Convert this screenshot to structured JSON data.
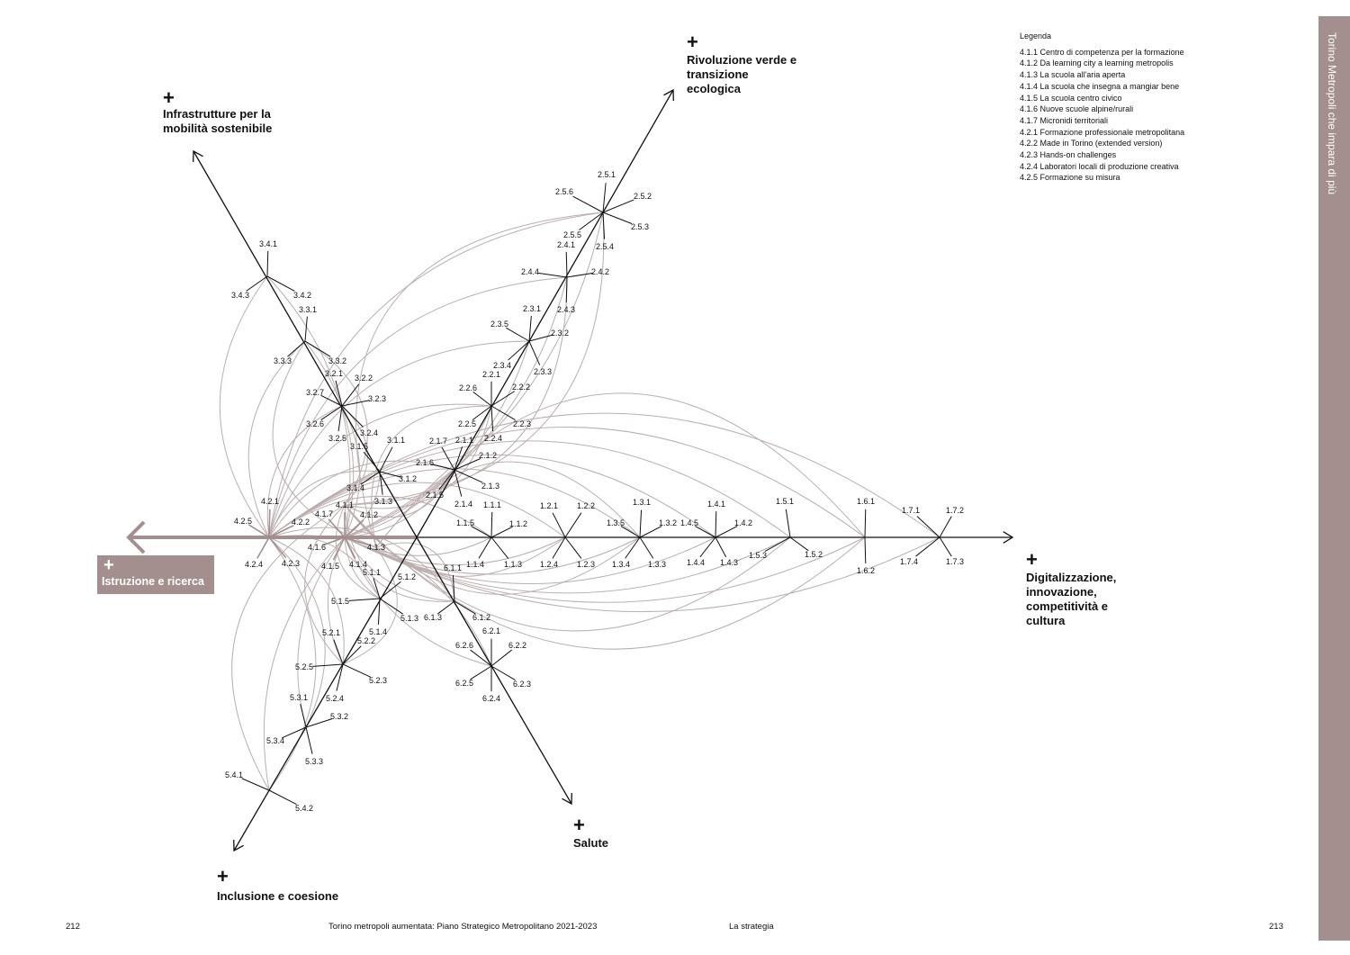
{
  "axes": [
    {
      "id": "1",
      "title": "Digitalizzazione, innovazione, competitività e cultura",
      "plus": "+"
    },
    {
      "id": "2",
      "title": "Rivoluzione verde e transizione ecologica",
      "plus": "+"
    },
    {
      "id": "3",
      "title": "Infrastrutture per la mobilità sostenibile",
      "plus": "+"
    },
    {
      "id": "4",
      "title": "Istruzione e ricerca",
      "plus": "+"
    },
    {
      "id": "5",
      "title": "Inclusione e coesione",
      "plus": "+"
    },
    {
      "id": "6",
      "title": "Salute",
      "plus": "+"
    }
  ],
  "hubs": [
    {
      "id": "1.1",
      "spokes": [
        "1.1.1",
        "1.1.2",
        "1.1.3",
        "1.1.4",
        "1.1.5"
      ]
    },
    {
      "id": "1.2",
      "spokes": [
        "1.2.1",
        "1.2.2",
        "1.2.3",
        "1.2.4"
      ]
    },
    {
      "id": "1.3",
      "spokes": [
        "1.3.1",
        "1.3.2",
        "1.3.3",
        "1.3.4",
        "1.3.5"
      ]
    },
    {
      "id": "1.4",
      "spokes": [
        "1.4.1",
        "1.4.2",
        "1.4.3",
        "1.4.4",
        "1.4.5"
      ]
    },
    {
      "id": "1.5",
      "spokes": [
        "1.5.1",
        "1.5.2",
        "1.5.3"
      ]
    },
    {
      "id": "1.6",
      "spokes": [
        "1.6.1",
        "1.6.2"
      ]
    },
    {
      "id": "1.7",
      "spokes": [
        "1.7.1",
        "1.7.2",
        "1.7.3",
        "1.7.4"
      ]
    },
    {
      "id": "2.1",
      "spokes": [
        "2.1.1",
        "2.1.2",
        "2.1.3",
        "2.1.4",
        "2.1.5",
        "2.1.6",
        "2.1.7"
      ]
    },
    {
      "id": "2.2",
      "spokes": [
        "2.2.1",
        "2.2.2",
        "2.2.3",
        "2.2.4",
        "2.2.5",
        "2.2.6"
      ]
    },
    {
      "id": "2.3",
      "spokes": [
        "2.3.1",
        "2.3.2",
        "2.3.3",
        "2.3.4",
        "2.3.5"
      ]
    },
    {
      "id": "2.4",
      "spokes": [
        "2.4.1",
        "2.4.2",
        "2.4.3",
        "2.4.4"
      ]
    },
    {
      "id": "2.5",
      "spokes": [
        "2.5.1",
        "2.5.2",
        "2.5.3",
        "2.5.4",
        "2.5.5",
        "2.5.6"
      ]
    },
    {
      "id": "3.1",
      "spokes": [
        "3.1.1",
        "3.1.2",
        "3.1.3",
        "3.1.4",
        "3.1.5"
      ]
    },
    {
      "id": "3.2",
      "spokes": [
        "3.2.1",
        "3.2.2",
        "3.2.3",
        "3.2.4",
        "3.2.5",
        "3.2.6",
        "3.2.7"
      ]
    },
    {
      "id": "3.3",
      "spokes": [
        "3.3.1",
        "3.3.2",
        "3.3.3"
      ]
    },
    {
      "id": "3.4",
      "spokes": [
        "3.4.1",
        "3.4.2",
        "3.4.3"
      ]
    },
    {
      "id": "4.1",
      "spokes": [
        "4.1.1",
        "4.1.2",
        "4.1.3",
        "4.1.4",
        "4.1.5",
        "4.1.6",
        "4.1.7"
      ]
    },
    {
      "id": "4.2",
      "spokes": [
        "4.2.1",
        "4.2.2",
        "4.2.3",
        "4.2.4",
        "4.2.5"
      ]
    },
    {
      "id": "5.1",
      "spokes": [
        "5.1.1",
        "5.1.2",
        "5.1.3",
        "5.1.4",
        "5.1.5"
      ]
    },
    {
      "id": "5.2",
      "spokes": [
        "5.2.1",
        "5.2.2",
        "5.2.3",
        "5.2.4",
        "5.2.5"
      ]
    },
    {
      "id": "5.3",
      "spokes": [
        "5.3.1",
        "5.3.2",
        "5.3.3",
        "5.3.4"
      ]
    },
    {
      "id": "5.4",
      "spokes": [
        "5.4.1",
        "5.4.2"
      ]
    },
    {
      "id": "6.1",
      "spokes": [
        "6.1.1",
        "6.1.2",
        "6.1.3"
      ]
    },
    {
      "id": "6.2",
      "spokes": [
        "6.2.1",
        "6.2.2",
        "6.2.3",
        "6.2.4",
        "6.2.5",
        "6.2.6"
      ]
    }
  ],
  "legend": {
    "title": "Legenda",
    "items": [
      "4.1.1 Centro di competenza per la formazione",
      "4.1.2 Da learning city a learning metropolis",
      "4.1.3 La scuola all'aria aperta",
      "4.1.4 La scuola che insegna a mangiar bene",
      "4.1.5 La scuola centro civico",
      "4.1.6 Nuove scuole alpine/rurali",
      "4.1.7 Micronidi territoriali",
      "4.2.1 Formazione professionale metropolitana",
      "4.2.2 Made in Torino (extended version)",
      "4.2.3 Hands-on challenges",
      "4.2.4 Laboratori locali di produzione creativa",
      "4.2.5 Formazione su misura"
    ]
  },
  "sidebar": {
    "title": "Torino Metropoli che impara di più"
  },
  "footer": {
    "page_left": "212",
    "publication": "Torino metropoli aumentata: Piano Strategico Metropolitano 2021-2023",
    "section": "La strategia",
    "page_right": "213"
  },
  "colors": {
    "accent": "#a38f8d",
    "arc": "#bcaeae",
    "axis": "#111111"
  }
}
